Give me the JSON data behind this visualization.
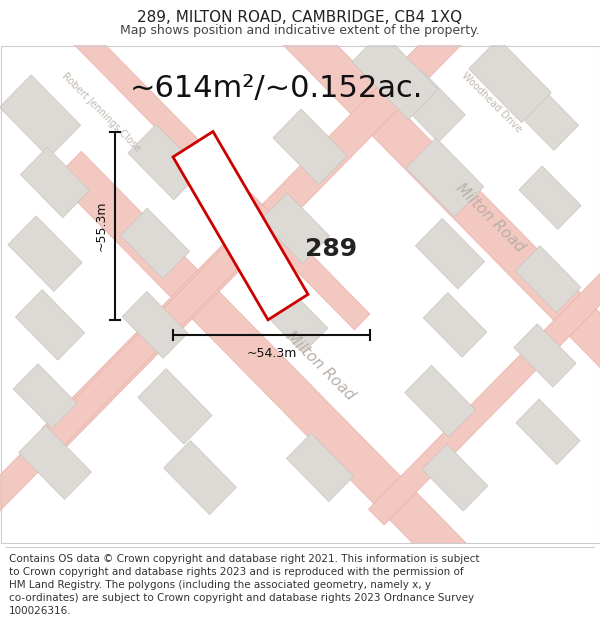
{
  "title": "289, MILTON ROAD, CAMBRIDGE, CB4 1XQ",
  "subtitle": "Map shows position and indicative extent of the property.",
  "area_label": "~614m²/~0.152ac.",
  "width_label": "~54.3m",
  "height_label": "~55.3m",
  "property_number": "289",
  "footer": "Contains OS data © Crown copyright and database right 2021. This information is subject to Crown copyright and database rights 2023 and is reproduced with the permission of HM Land Registry. The polygons (including the associated geometry, namely x, y co-ordinates) are subject to Crown copyright and database rights 2023 Ordnance Survey 100026316.",
  "map_bg": "#f7f5f2",
  "road_pink": "#f2c8c0",
  "road_outline_pink": "#e8b0a8",
  "block_color": "#dddad5",
  "block_outline": "#c8c5c0",
  "property_fill": "#ffffff",
  "property_edge": "#cc0000",
  "dim_line_color": "#111111",
  "street_label_color": "#b8b0a8",
  "title_fontsize": 11,
  "subtitle_fontsize": 9,
  "area_fontsize": 22,
  "dim_fontsize": 9,
  "num_fontsize": 18,
  "footer_fontsize": 7.5,
  "road_label_fontsize": 11,
  "street_name_fontsize": 7
}
